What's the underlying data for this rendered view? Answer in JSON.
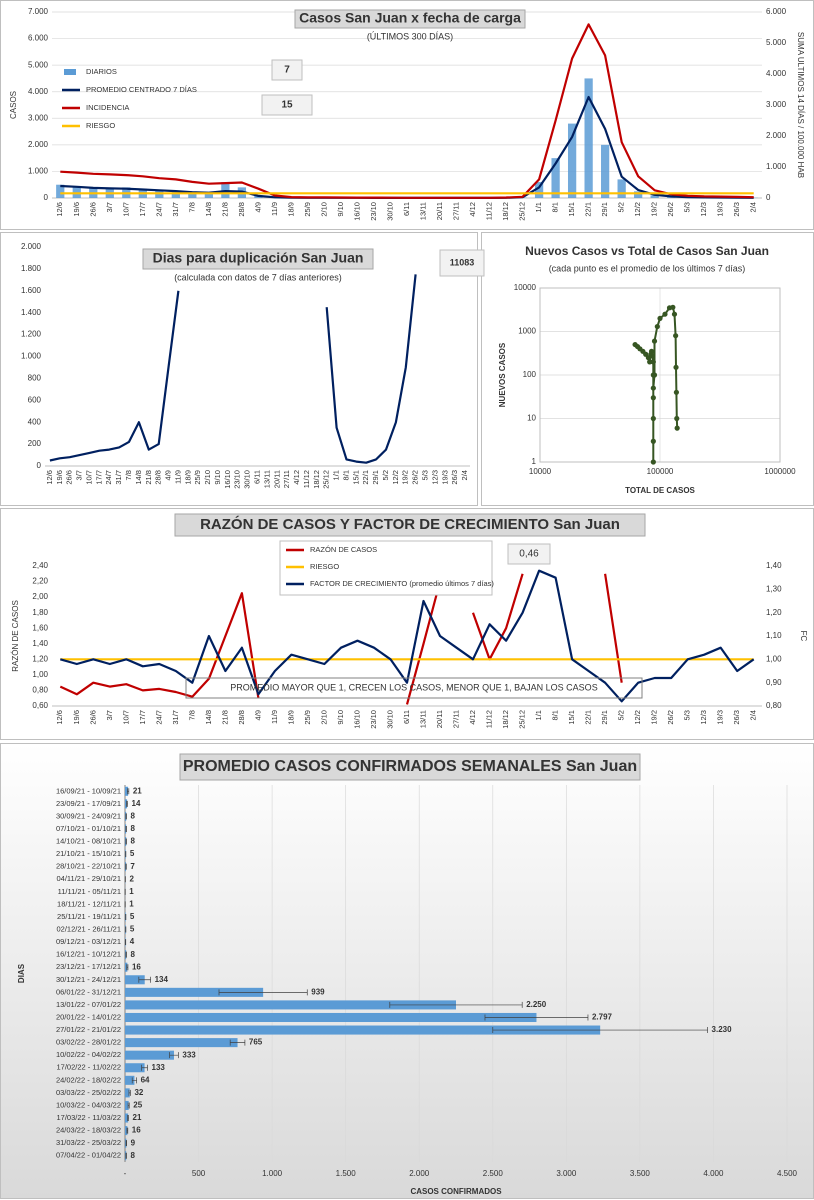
{
  "chart_data": [
    {
      "type": "bar",
      "title": "Casos San Juan x fecha de carga",
      "subtitle": "(ÚLTIMOS 300 DÍAS)",
      "y_label": "CASOS",
      "y2_label": "SUMA ULTIMOS 14 DÍAS / 100.000 HAB",
      "grid": true,
      "legend": "upper left",
      "annotations": [
        "7",
        "15"
      ],
      "categories": [
        "12/6",
        "19/6",
        "26/6",
        "3/7",
        "10/7",
        "17/7",
        "24/7",
        "31/7",
        "7/8",
        "14/8",
        "21/8",
        "28/8",
        "4/9",
        "11/9",
        "18/9",
        "25/9",
        "2/10",
        "9/10",
        "16/10",
        "23/10",
        "30/10",
        "6/11",
        "13/11",
        "20/11",
        "27/11",
        "4/12",
        "11/12",
        "18/12",
        "25/12",
        "1/1",
        "8/1",
        "15/1",
        "22/1",
        "29/1",
        "5/2",
        "12/2",
        "19/2",
        "26/2",
        "5/3",
        "12/3",
        "19/3",
        "26/3",
        "2/4"
      ],
      "ylim": [
        0,
        7000
      ],
      "yticks": [
        0,
        {
          "value": 1000,
          "label": "1.000"
        },
        {
          "value": 2000,
          "label": "2.000"
        },
        {
          "value": 3000,
          "label": "3.000"
        },
        {
          "value": 4000,
          "label": "4.000"
        },
        {
          "value": 5000,
          "label": "5.000"
        },
        {
          "value": 6000,
          "label": "6.000"
        },
        {
          "value": 7000,
          "label": "7.000"
        }
      ],
      "y2lim": [
        0,
        6000
      ],
      "y2ticks": [
        0,
        {
          "value": 1000,
          "label": "1.000"
        },
        {
          "value": 2000,
          "label": "2.000"
        },
        {
          "value": 3000,
          "label": "3.000"
        },
        {
          "value": 4000,
          "label": "4.000"
        },
        {
          "value": 5000,
          "label": "5.000"
        },
        {
          "value": 6000,
          "label": "6.000"
        }
      ],
      "series": [
        {
          "name": "DIARIOS",
          "type": "bar",
          "color": "#5b9bd5",
          "values": [
            500,
            450,
            400,
            380,
            400,
            350,
            300,
            280,
            250,
            200,
            600,
            400,
            100,
            30,
            15,
            10,
            8,
            8,
            5,
            5,
            5,
            3,
            2,
            2,
            2,
            3,
            5,
            8,
            20,
            600,
            1500,
            2800,
            4500,
            2000,
            700,
            250,
            100,
            50,
            30,
            20,
            25,
            15,
            10
          ]
        },
        {
          "name": "PROMEDIO CENTRADO 7 DÍAS",
          "type": "line",
          "color": "#002060",
          "values": [
            450,
            420,
            380,
            360,
            350,
            320,
            290,
            260,
            220,
            200,
            260,
            240,
            80,
            25,
            12,
            9,
            8,
            7,
            6,
            5,
            4,
            3,
            2,
            2,
            2,
            3,
            5,
            8,
            30,
            400,
            1300,
            2300,
            3800,
            2600,
            800,
            300,
            120,
            60,
            30,
            22,
            20,
            15,
            9
          ]
        },
        {
          "name": "INCIDENCIA",
          "type": "line",
          "color": "#c00000",
          "axis": "y2",
          "values": [
            850,
            820,
            780,
            760,
            740,
            700,
            640,
            600,
            520,
            460,
            480,
            500,
            300,
            80,
            30,
            20,
            18,
            16,
            14,
            12,
            10,
            8,
            6,
            5,
            5,
            6,
            8,
            15,
            40,
            600,
            2500,
            4500,
            5600,
            4600,
            1800,
            700,
            250,
            120,
            70,
            50,
            45,
            35,
            25
          ]
        },
        {
          "name": "RIESGO",
          "type": "line",
          "color": "#ffc000",
          "axis": "y2",
          "values": [
            150,
            150,
            150,
            150,
            150,
            150,
            150,
            150,
            150,
            150,
            150,
            150,
            150,
            150,
            150,
            150,
            150,
            150,
            150,
            150,
            150,
            150,
            150,
            150,
            150,
            150,
            150,
            150,
            150,
            150,
            150,
            150,
            150,
            150,
            150,
            150,
            150,
            150,
            150,
            150,
            150,
            150,
            150
          ]
        }
      ]
    },
    {
      "type": "line",
      "title": "Dias para duplicación San Juan",
      "subtitle": "(calculada con datos de 7 días anteriores)",
      "annotations": [
        "11083"
      ],
      "grid": false,
      "categories": [
        "12/6",
        "19/6",
        "26/6",
        "3/7",
        "10/7",
        "17/7",
        "24/7",
        "31/7",
        "7/8",
        "14/8",
        "21/8",
        "28/8",
        "4/9",
        "11/9",
        "18/9",
        "25/9",
        "2/10",
        "9/10",
        "16/10",
        "23/10",
        "30/10",
        "6/11",
        "13/11",
        "20/11",
        "27/11",
        "4/12",
        "11/12",
        "18/12",
        "25/12",
        "1/1",
        "8/1",
        "15/1",
        "22/1",
        "29/1",
        "5/2",
        "12/2",
        "19/2",
        "26/2",
        "5/3",
        "12/3",
        "19/3",
        "26/3",
        "2/4"
      ],
      "ylim": [
        0,
        2000
      ],
      "yticks": [
        0,
        200,
        400,
        600,
        800,
        {
          "value": 1000,
          "label": "1.000"
        },
        {
          "value": 1200,
          "label": "1.200"
        },
        {
          "value": 1400,
          "label": "1.400"
        },
        {
          "value": 1600,
          "label": "1.600"
        },
        {
          "value": 1800,
          "label": "1.800"
        },
        {
          "value": 2000,
          "label": "2.000"
        }
      ],
      "series": [
        {
          "type": "line",
          "color": "#002060",
          "values": [
            50,
            70,
            80,
            100,
            120,
            140,
            150,
            170,
            220,
            400,
            150,
            200,
            900,
            1600,
            null,
            null,
            null,
            null,
            null,
            null,
            null,
            null,
            null,
            null,
            null,
            null,
            null,
            null,
            1450,
            350,
            60,
            40,
            30,
            60,
            150,
            400,
            900,
            1750,
            null,
            null,
            null,
            null,
            null
          ]
        }
      ]
    },
    {
      "type": "scatter",
      "title": "Nuevos Casos vs Total de Casos San Juan",
      "subtitle": "(cada punto es el promedio de los últimos 7 días)",
      "x_label": "TOTAL DE CASOS",
      "y_label": "NUEVOS CASOS",
      "log_x": true,
      "log_y": true,
      "grid": true,
      "color": "#375623",
      "xlim": [
        10000,
        1000000
      ],
      "xticks": [
        10000,
        100000,
        1000000
      ],
      "ylim": [
        1,
        10000
      ],
      "yticks": [
        1,
        10,
        100,
        1000,
        10000
      ],
      "x": [
        62000,
        65000,
        68000,
        72000,
        76000,
        80000,
        82000,
        84000,
        85000,
        86000,
        88000,
        88000,
        88000,
        88000,
        88000,
        88000,
        88000,
        90000,
        90000,
        95000,
        100000,
        110000,
        120000,
        128000,
        132000,
        135000,
        136000,
        137000,
        138000,
        139000
      ],
      "values": [
        500,
        450,
        400,
        350,
        300,
        250,
        200,
        300,
        350,
        280,
        200,
        100,
        30,
        10,
        3,
        1,
        50,
        100,
        600,
        1300,
        2000,
        2500,
        3500,
        3600,
        2500,
        800,
        150,
        40,
        10,
        6
      ]
    },
    {
      "type": "line",
      "title": "RAZÓN DE CASOS Y FACTOR DE CRECIMIENTO San Juan",
      "y_label": "RAZÓN DE CASOS",
      "y2_label": "FC",
      "legend": "upper center",
      "grid": false,
      "annotations": [
        "0,46",
        "PROMEDIO MAYOR QUE 1, CRECEN LOS CASOS, MENOR QUE 1, BAJAN LOS CASOS"
      ],
      "categories": [
        "12/6",
        "19/6",
        "26/6",
        "3/7",
        "10/7",
        "17/7",
        "24/7",
        "31/7",
        "7/8",
        "14/8",
        "21/8",
        "28/8",
        "4/9",
        "11/9",
        "18/9",
        "25/9",
        "2/10",
        "9/10",
        "16/10",
        "23/10",
        "30/10",
        "6/11",
        "13/11",
        "20/11",
        "27/11",
        "4/12",
        "11/12",
        "18/12",
        "25/12",
        "1/1",
        "8/1",
        "15/1",
        "22/1",
        "29/1",
        "5/2",
        "12/2",
        "19/2",
        "26/2",
        "5/3",
        "12/3",
        "19/3",
        "26/3",
        "2/4"
      ],
      "ylim": [
        0.6,
        2.4
      ],
      "yticks": [
        {
          "value": 0.6,
          "label": "0,60"
        },
        {
          "value": 0.8,
          "label": "0,80"
        },
        {
          "value": 1.0,
          "label": "1,00"
        },
        {
          "value": 1.2,
          "label": "1,20"
        },
        {
          "value": 1.4,
          "label": "1,40"
        },
        {
          "value": 1.6,
          "label": "1,60"
        },
        {
          "value": 1.8,
          "label": "1,80"
        },
        {
          "value": 2.0,
          "label": "2,00"
        },
        {
          "value": 2.2,
          "label": "2,20"
        },
        {
          "value": 2.4,
          "label": "2,40"
        }
      ],
      "y2lim": [
        0.8,
        1.4
      ],
      "y2ticks": [
        {
          "value": 0.8,
          "label": "0,80"
        },
        {
          "value": 0.9,
          "label": "0,90"
        },
        {
          "value": 1.0,
          "label": "1,00"
        },
        {
          "value": 1.1,
          "label": "1,10"
        },
        {
          "value": 1.2,
          "label": "1,20"
        },
        {
          "value": 1.3,
          "label": "1,30"
        },
        {
          "value": 1.4,
          "label": "1,40"
        }
      ],
      "series": [
        {
          "name": "RAZÓN DE CASOS",
          "type": "line",
          "color": "#c00000",
          "values": [
            0.85,
            0.75,
            0.9,
            0.85,
            0.88,
            0.8,
            0.82,
            0.78,
            0.72,
            0.95,
            1.5,
            2.05,
            0.7,
            null,
            null,
            null,
            null,
            null,
            null,
            null,
            null,
            0.62,
            1.4,
            2.2,
            null,
            1.8,
            1.2,
            1.6,
            2.3,
            null,
            null,
            null,
            null,
            2.3,
            0.9,
            null,
            null,
            null,
            null,
            null,
            null,
            0.65,
            null
          ]
        },
        {
          "name": "RIESGO",
          "type": "line",
          "color": "#ffc000",
          "values": [
            1.2,
            1.2,
            1.2,
            1.2,
            1.2,
            1.2,
            1.2,
            1.2,
            1.2,
            1.2,
            1.2,
            1.2,
            1.2,
            1.2,
            1.2,
            1.2,
            1.2,
            1.2,
            1.2,
            1.2,
            1.2,
            1.2,
            1.2,
            1.2,
            1.2,
            1.2,
            1.2,
            1.2,
            1.2,
            1.2,
            1.2,
            1.2,
            1.2,
            1.2,
            1.2,
            1.2,
            1.2,
            1.2,
            1.2,
            1.2,
            1.2,
            1.2,
            1.2
          ]
        },
        {
          "name": "FACTOR DE CRECIMIENTO (promedio últimos 7 días)",
          "type": "line",
          "color": "#002060",
          "axis": "y2",
          "values": [
            1.0,
            0.98,
            1.0,
            0.98,
            1.0,
            0.97,
            0.98,
            0.95,
            0.9,
            1.1,
            0.95,
            1.05,
            0.85,
            0.95,
            1.02,
            1.0,
            0.98,
            1.05,
            1.08,
            1.05,
            1.0,
            0.9,
            1.25,
            1.1,
            1.05,
            1.0,
            1.15,
            1.08,
            1.2,
            1.38,
            1.35,
            1.0,
            0.95,
            0.9,
            0.82,
            0.9,
            0.92,
            0.92,
            1.0,
            1.02,
            1.05,
            0.95,
            1.0
          ]
        }
      ]
    },
    {
      "type": "hbar",
      "title": "PROMEDIO CASOS CONFIRMADOS SEMANALES San Juan",
      "x_label": "CASOS CONFIRMADOS",
      "y_label": "DIAS",
      "grid": true,
      "color": "#5b9bd5",
      "categories": [
        "16/09/21 - 10/09/21",
        "23/09/21 - 17/09/21",
        "30/09/21 - 24/09/21",
        "07/10/21 - 01/10/21",
        "14/10/21 - 08/10/21",
        "21/10/21 - 15/10/21",
        "28/10/21 - 22/10/21",
        "04/11/21 - 29/10/21",
        "11/11/21 - 05/11/21",
        "18/11/21 - 12/11/21",
        "25/11/21 - 19/11/21",
        "02/12/21 - 26/11/21",
        "09/12/21 - 03/12/21",
        "16/12/21 - 10/12/21",
        "23/12/21 - 17/12/21",
        "30/12/21 - 24/12/21",
        "06/01/22 - 31/12/21",
        "13/01/22 - 07/01/22",
        "20/01/22 - 14/01/22",
        "27/01/22 - 21/01/22",
        "03/02/22 - 28/01/22",
        "10/02/22 - 04/02/22",
        "17/02/22 - 11/02/22",
        "24/02/22 - 18/02/22",
        "03/03/22 - 25/02/22",
        "10/03/22 - 04/03/22",
        "17/03/22 - 11/03/22",
        "24/03/22 - 18/03/22",
        "31/03/22 - 25/03/22",
        "07/04/22 - 01/04/22"
      ],
      "values": [
        21,
        14,
        8,
        8,
        8,
        5,
        7,
        2,
        1,
        1,
        5,
        5,
        4,
        8,
        16,
        134,
        939,
        2250,
        2797,
        3230,
        765,
        333,
        133,
        64,
        32,
        25,
        21,
        16,
        9,
        8
      ],
      "value_labels": [
        "21",
        "14",
        "8",
        "8",
        "8",
        "5",
        "7",
        "2",
        "1",
        "1",
        "5",
        "5",
        "4",
        "8",
        "16",
        "134",
        "939",
        "2.250",
        "2.797",
        "3.230",
        "765",
        "333",
        "133",
        "64",
        "32",
        "25",
        "21",
        "16",
        "9",
        "8"
      ],
      "errors": [
        5,
        3,
        2,
        2,
        2,
        1,
        2,
        1,
        1,
        1,
        1,
        1,
        1,
        2,
        4,
        40,
        300,
        450,
        350,
        730,
        50,
        30,
        20,
        15,
        5,
        4,
        3,
        3,
        2,
        2
      ],
      "xlim": [
        0,
        4500
      ],
      "xticks": [
        {
          "value": 0,
          "label": "-"
        },
        500,
        {
          "value": 1000,
          "label": "1.000"
        },
        {
          "value": 1500,
          "label": "1.500"
        },
        {
          "value": 2000,
          "label": "2.000"
        },
        {
          "value": 2500,
          "label": "2.500"
        },
        {
          "value": 3000,
          "label": "3.000"
        },
        {
          "value": 3500,
          "label": "3.500"
        },
        {
          "value": 4000,
          "label": "4.000"
        },
        {
          "value": 4500,
          "label": "4.500"
        }
      ]
    }
  ]
}
